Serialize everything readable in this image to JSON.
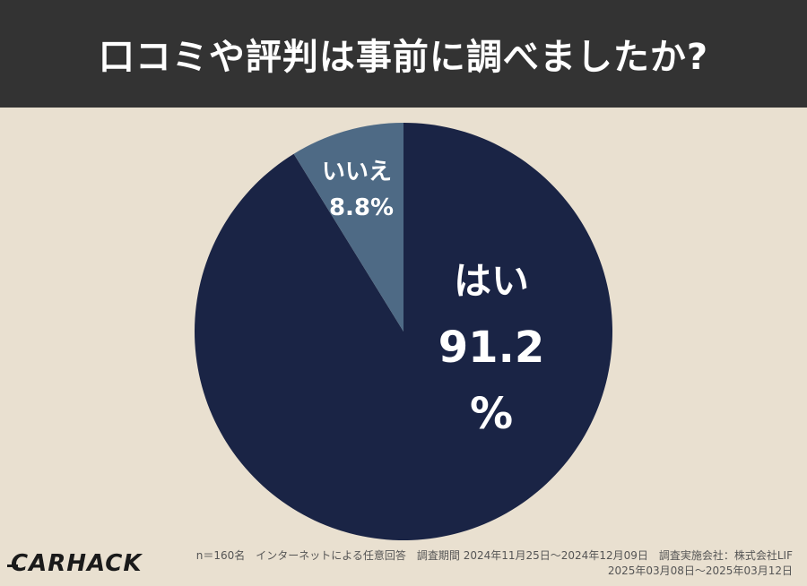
{
  "header": {
    "title": "口コミや評判は事前に調べましたか?"
  },
  "chart_data": {
    "type": "pie",
    "title": "口コミや評判は事前に調べましたか?",
    "slices": [
      {
        "label": "はい",
        "value": 91.2,
        "value_text": "91.2",
        "unit_text": "%",
        "color": "#1a2445"
      },
      {
        "label": "いいえ",
        "value": 8.8,
        "value_text": "8.8%",
        "color": "#4e6a85"
      }
    ],
    "start": "12 o'clock",
    "direction": "clockwise"
  },
  "footer": {
    "logo": "CARHACK",
    "note_line1": "n＝160名　インターネットによる任意回答　調査期間 2024年11月25日〜2024年12月09日　調査実施会社：株式会社LIF",
    "note_line2": "2025年03月08日〜2025年03月12日"
  },
  "colors": {
    "background": "#e9e0d0",
    "header_background": "#333333",
    "header_text": "#ffffff"
  }
}
